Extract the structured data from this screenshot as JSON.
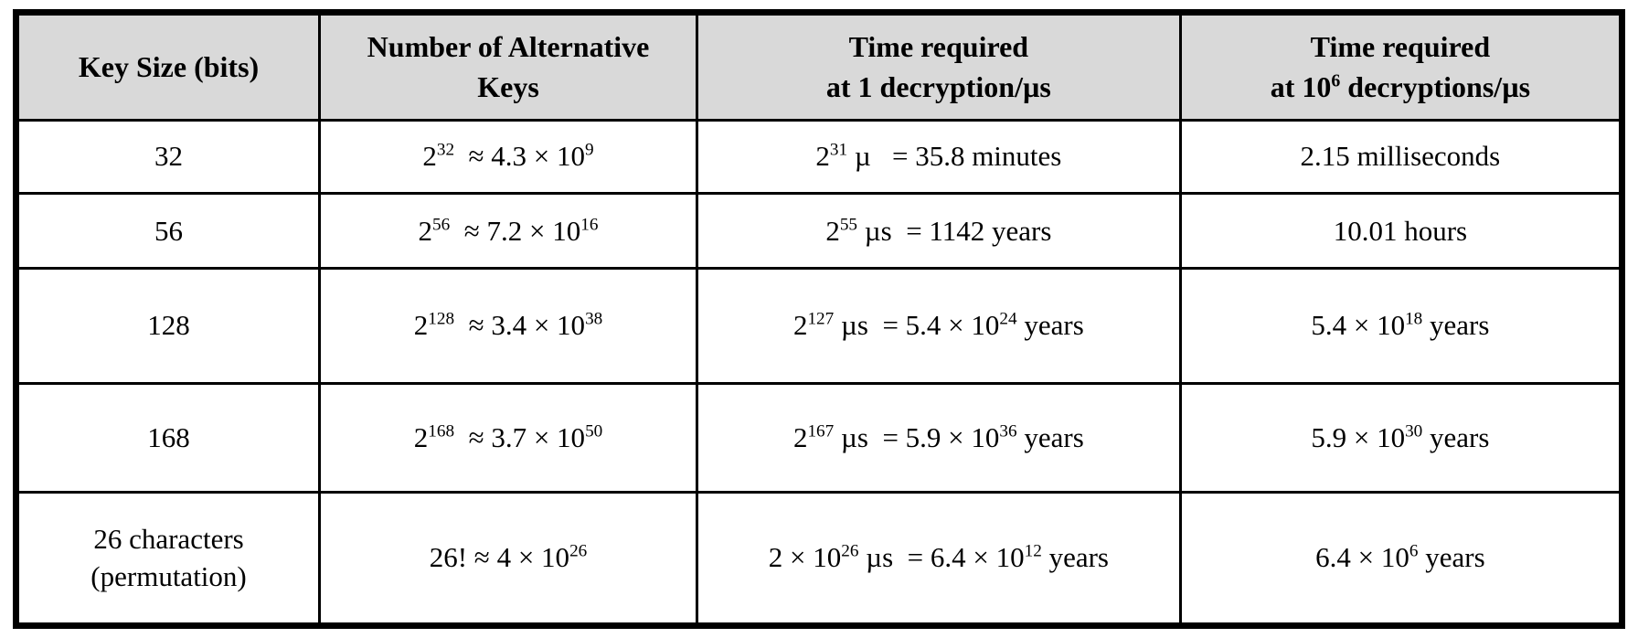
{
  "colors": {
    "header_background": "#d9d9d9",
    "border": "#000000",
    "text": "#000000",
    "page_background": "#ffffff"
  },
  "table": {
    "headers": [
      {
        "lines": [
          [
            {
              "text": "Key Size (bits)"
            }
          ]
        ]
      },
      {
        "lines": [
          [
            {
              "text": "Number of Alternative"
            }
          ],
          [
            {
              "text": "Keys"
            }
          ]
        ]
      },
      {
        "lines": [
          [
            {
              "text": "Time required"
            }
          ],
          [
            {
              "text": "at 1 decryption/µs"
            }
          ]
        ]
      },
      {
        "lines": [
          [
            {
              "text": "Time required"
            }
          ],
          [
            {
              "text": "at 10"
            },
            {
              "sup": "6"
            },
            {
              "text": " decryptions/µs"
            }
          ]
        ]
      }
    ],
    "rows": [
      {
        "cells": [
          [
            [
              {
                "text": "32"
              }
            ]
          ],
          [
            [
              {
                "text": "2"
              },
              {
                "sup": "32"
              },
              {
                "text": "  ≈ 4.3 × 10"
              },
              {
                "sup": "9"
              }
            ]
          ],
          [
            [
              {
                "text": "2"
              },
              {
                "sup": "31"
              },
              {
                "text": " µ   = 35.8 minutes"
              }
            ]
          ],
          [
            [
              {
                "text": "2.15 milliseconds"
              }
            ]
          ]
        ]
      },
      {
        "cells": [
          [
            [
              {
                "text": "56"
              }
            ]
          ],
          [
            [
              {
                "text": "2"
              },
              {
                "sup": "56"
              },
              {
                "text": "  ≈ 7.2 × 10"
              },
              {
                "sup": "16"
              }
            ]
          ],
          [
            [
              {
                "text": "2"
              },
              {
                "sup": "55"
              },
              {
                "text": " µs  = 1142 years"
              }
            ]
          ],
          [
            [
              {
                "text": "10.01 hours"
              }
            ]
          ]
        ]
      },
      {
        "cells": [
          [
            [
              {
                "text": "128"
              }
            ]
          ],
          [
            [
              {
                "text": "2"
              },
              {
                "sup": "128"
              },
              {
                "text": "  ≈ 3.4 × 10"
              },
              {
                "sup": "38"
              }
            ]
          ],
          [
            [
              {
                "text": "2"
              },
              {
                "sup": "127"
              },
              {
                "text": " µs  = 5.4 × 10"
              },
              {
                "sup": "24"
              },
              {
                "text": " years"
              }
            ]
          ],
          [
            [
              {
                "text": "5.4 × 10"
              },
              {
                "sup": "18"
              },
              {
                "text": " years"
              }
            ]
          ]
        ]
      },
      {
        "cells": [
          [
            [
              {
                "text": "168"
              }
            ]
          ],
          [
            [
              {
                "text": "2"
              },
              {
                "sup": "168"
              },
              {
                "text": "  ≈ 3.7 × 10"
              },
              {
                "sup": "50"
              }
            ]
          ],
          [
            [
              {
                "text": "2"
              },
              {
                "sup": "167"
              },
              {
                "text": " µs  = 5.9 × 10"
              },
              {
                "sup": "36"
              },
              {
                "text": " years"
              }
            ]
          ],
          [
            [
              {
                "text": "5.9 × 10"
              },
              {
                "sup": "30"
              },
              {
                "text": " years"
              }
            ]
          ]
        ]
      },
      {
        "cells": [
          [
            [
              {
                "text": "26 characters"
              }
            ],
            [
              {
                "text": "(permutation)"
              }
            ]
          ],
          [
            [
              {
                "text": "26! ≈ 4 × 10"
              },
              {
                "sup": "26"
              }
            ]
          ],
          [
            [
              {
                "text": "2 × 10"
              },
              {
                "sup": "26"
              },
              {
                "text": " µs  = 6.4 × 10"
              },
              {
                "sup": "12"
              },
              {
                "text": " years"
              }
            ]
          ],
          [
            [
              {
                "text": "6.4 × 10"
              },
              {
                "sup": "6"
              },
              {
                "text": " years"
              }
            ]
          ]
        ]
      }
    ]
  }
}
